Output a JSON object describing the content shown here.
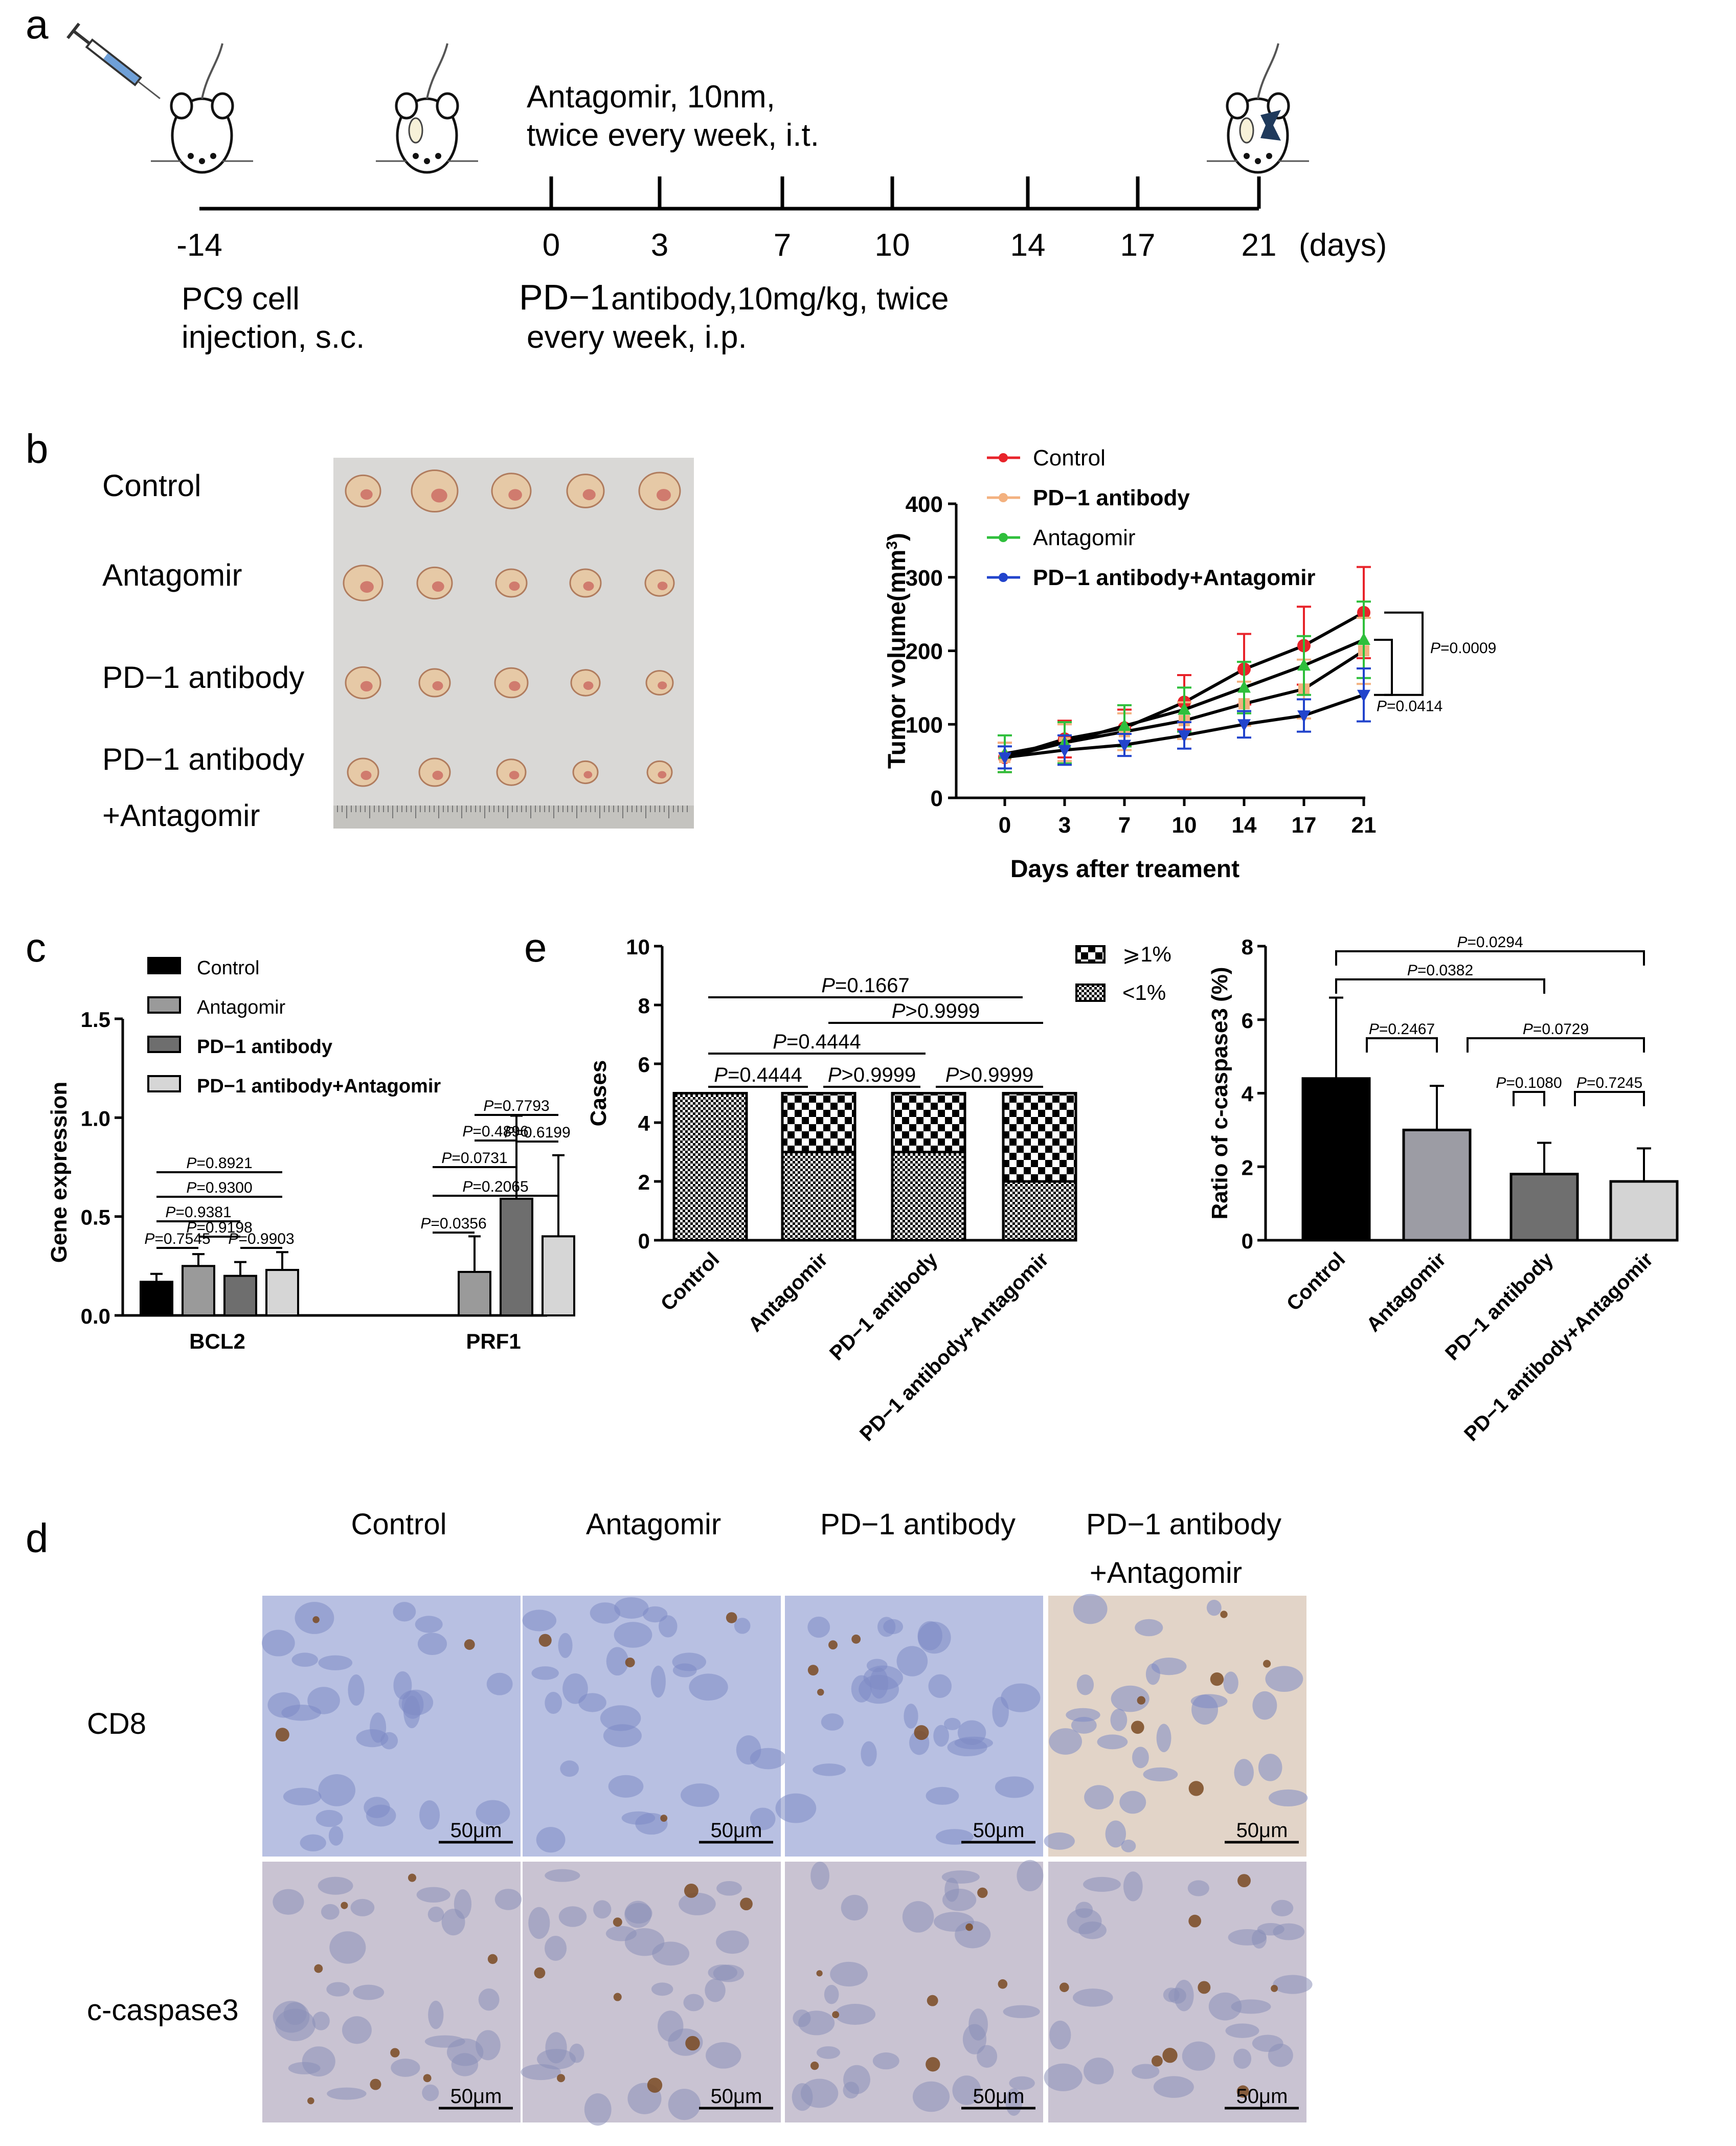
{
  "panel_letters": {
    "a": "a",
    "b": "b",
    "c": "c",
    "d": "d",
    "e": "e"
  },
  "panel_a": {
    "top_text_line1": "Antagomir, 10nm,",
    "top_text_line2": "twice every week, i.t.",
    "days": [
      "-14",
      "0",
      "3",
      "7",
      "10",
      "14",
      "17",
      "21"
    ],
    "days_unit": "(days)",
    "bottom_left_line1": "PC9 cell",
    "bottom_left_line2": "injection, s.c.",
    "bottom_right_line1_a": "PD−1",
    "bottom_right_line1_b": "antibody,10mg/kg, twice",
    "bottom_right_line2": "every week, i.p."
  },
  "panel_b": {
    "photo_labels": [
      "Control",
      "Antagomir",
      "PD−1 antibody",
      "PD−1 antibody",
      "+Antagomir"
    ]
  },
  "panel_d": {
    "column_labels": [
      "Control",
      "Antagomir",
      "PD−1 antibody",
      "PD−1 antibody",
      "+Antagomir"
    ],
    "row_labels": [
      "CD8",
      "c-caspase3"
    ],
    "scale_bar": "50μm",
    "tile_colors": [
      "#b8c0e2",
      "#c9c3d2",
      "#e2d4c8"
    ]
  },
  "chart_data": [
    {
      "id": "tumor-volume",
      "type": "line",
      "ylabel": "Tumor volume(mm3)",
      "xlabel": "Days after treament",
      "x": [
        0,
        3,
        7,
        10,
        14,
        17,
        21
      ],
      "x_ticks": [
        "0",
        "3",
        "7",
        "10",
        "14",
        "17",
        "21"
      ],
      "ylim": [
        0,
        400
      ],
      "y_ticks": [
        "0",
        "100",
        "200",
        "300",
        "400"
      ],
      "series": [
        {
          "name": "Control",
          "color": "#e8232a",
          "marker": "circle",
          "values": [
            55,
            80,
            95,
            130,
            175,
            207,
            252
          ],
          "err": [
            20,
            25,
            25,
            37,
            48,
            53,
            62
          ]
        },
        {
          "name": "PD−1 antibody",
          "color": "#f3b17f",
          "marker": "square",
          "values": [
            55,
            75,
            90,
            105,
            128,
            148,
            200
          ],
          "err": [
            20,
            25,
            25,
            25,
            30,
            40,
            45
          ]
        },
        {
          "name": "Antagomir",
          "color": "#2fbf3c",
          "marker": "triangle-up",
          "values": [
            60,
            75,
            98,
            120,
            150,
            180,
            215
          ],
          "err": [
            25,
            28,
            28,
            30,
            35,
            40,
            52
          ]
        },
        {
          "name": "PD−1 antibody+Antagomir",
          "color": "#2244cc",
          "marker": "triangle-down",
          "values": [
            55,
            65,
            72,
            85,
            100,
            112,
            140
          ],
          "err": [
            15,
            20,
            15,
            18,
            18,
            22,
            36
          ]
        }
      ],
      "annotations": [
        {
          "text": "P=0.0009"
        },
        {
          "text": "P=0.0414"
        }
      ]
    },
    {
      "id": "gene-expression",
      "type": "bar",
      "ylabel": "Gene expression",
      "categories": [
        "BCL2",
        "PRF1"
      ],
      "ylim": [
        0,
        1.5
      ],
      "y_ticks": [
        "0.0",
        "0.5",
        "1.0",
        "1.5"
      ],
      "series": [
        {
          "name": "Control",
          "color": "#000000",
          "values": [
            0.17,
            0.0
          ],
          "err": [
            0.04,
            0.0
          ]
        },
        {
          "name": "Antagomir",
          "color": "#9a9a9a",
          "values": [
            0.25,
            0.22
          ],
          "err": [
            0.06,
            0.18
          ]
        },
        {
          "name": "PD−1 antibody",
          "color": "#6e6e6e",
          "values": [
            0.2,
            0.59
          ],
          "err": [
            0.07,
            0.42
          ]
        },
        {
          "name": "PD−1 antibody+Antagomir",
          "color": "#d6d6d6",
          "values": [
            0.23,
            0.4
          ],
          "err": [
            0.09,
            0.41
          ]
        }
      ],
      "annotations": [
        {
          "text": "P=0.8921"
        },
        {
          "text": "P=0.9300"
        },
        {
          "text": "P=0.9381"
        },
        {
          "text": "P=0.7545"
        },
        {
          "text": "P=0.9198"
        },
        {
          "text": "P=0.9903"
        },
        {
          "text": "P=0.7793"
        },
        {
          "text": "P=0.4896"
        },
        {
          "text": "P=0.6199"
        },
        {
          "text": "P=0.0731"
        },
        {
          "text": "P=0.2065"
        },
        {
          "text": "P=0.0356"
        }
      ]
    },
    {
      "id": "cases",
      "type": "bar",
      "stacked": true,
      "ylabel": "Cases",
      "categories": [
        "Control",
        "Antagomir",
        "PD−1 antibody",
        "PD−1 antibody+Antagomir"
      ],
      "ylim": [
        0,
        10
      ],
      "y_ticks": [
        "0",
        "2",
        "4",
        "6",
        "8",
        "10"
      ],
      "series": [
        {
          "name": "<1%",
          "values": [
            5,
            3,
            3,
            2
          ]
        },
        {
          "name": "⩾1%",
          "values": [
            0,
            2,
            2,
            3
          ]
        }
      ],
      "annotations": [
        {
          "text": "P=0.1667"
        },
        {
          "text": "P>0.9999"
        },
        {
          "text": "P=0.4444"
        },
        {
          "text": "P=0.4444"
        },
        {
          "text": "P>0.9999"
        },
        {
          "text": "P>0.9999"
        }
      ]
    },
    {
      "id": "c-caspase3",
      "type": "bar",
      "ylabel": "Ratio of c-caspase3 (%)",
      "categories": [
        "Control",
        "Antagomir",
        "PD−1 antibody",
        "PD−1 antibody+Antagomir"
      ],
      "ylim": [
        0,
        8
      ],
      "y_ticks": [
        "0",
        "2",
        "4",
        "6",
        "8"
      ],
      "series": [
        {
          "name": "",
          "colors": [
            "#000000",
            "#9c9ca4",
            "#6f6f6f",
            "#d4d4d4"
          ],
          "values": [
            4.4,
            3.0,
            1.8,
            1.6
          ],
          "err": [
            2.2,
            1.2,
            0.85,
            0.9
          ]
        }
      ],
      "annotations": [
        {
          "text": "P=0.0294"
        },
        {
          "text": "P=0.0382"
        },
        {
          "text": "P=0.2467"
        },
        {
          "text": "P=0.0729"
        },
        {
          "text": "P=0.1080"
        },
        {
          "text": "P=0.7245"
        }
      ]
    }
  ]
}
